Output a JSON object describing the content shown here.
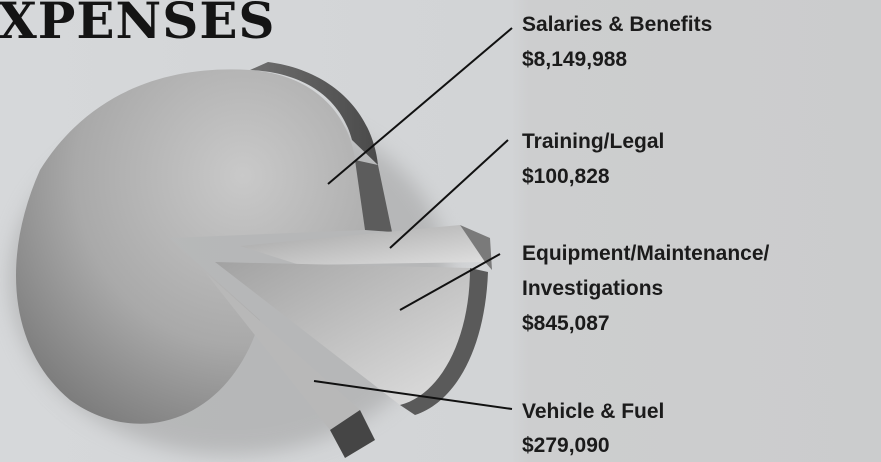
{
  "title": "XPENSES",
  "items": [
    {
      "label": [
        "Salaries & Benefits"
      ],
      "amount": "$8,149,988"
    },
    {
      "label": [
        "Training/Legal"
      ],
      "amount": "$100,828"
    },
    {
      "label": [
        "Equipment/Maintenance/",
        "Investigations"
      ],
      "amount": "$845,087"
    },
    {
      "label": [
        "Vehicle & Fuel"
      ],
      "amount": "$279,090"
    }
  ]
}
